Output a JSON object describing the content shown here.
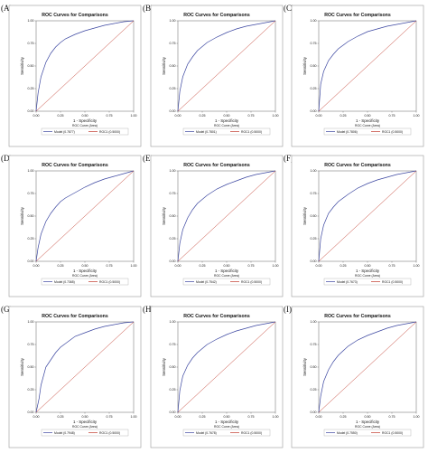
{
  "chart_data": [
    {
      "panel": "(A)",
      "type": "line",
      "title": "ROC Curves for Comparisons",
      "xlabel": "1 - Specificity",
      "ylabel": "Sensitivity",
      "xlim": [
        0,
        1
      ],
      "ylim": [
        0,
        1
      ],
      "xticks": [
        "0.00",
        "0.25",
        "0.50",
        "0.75",
        "1.00"
      ],
      "yticks": [
        "0.00",
        "0.25",
        "0.50",
        "0.75",
        "1.00"
      ],
      "legend_title": "ROC Curve (Area)",
      "legend_position": "bottom",
      "series": [
        {
          "name": "Model",
          "area_label": "(0.7877)",
          "color": "#3b46a0",
          "x": [
            0,
            0.02,
            0.05,
            0.1,
            0.15,
            0.2,
            0.25,
            0.3,
            0.4,
            0.5,
            0.6,
            0.7,
            0.8,
            0.9,
            1
          ],
          "y": [
            0,
            0.2,
            0.38,
            0.54,
            0.64,
            0.71,
            0.76,
            0.8,
            0.85,
            0.89,
            0.92,
            0.95,
            0.97,
            0.99,
            1
          ]
        },
        {
          "name": "ROC1",
          "area_label": "(0.5000)",
          "color": "#c0392b",
          "x": [
            0,
            1
          ],
          "y": [
            0,
            1
          ]
        }
      ]
    },
    {
      "panel": "(B)",
      "type": "line",
      "title": "ROC Curves for Comparisons",
      "xlabel": "1 - Specificity",
      "ylabel": "Sensitivity",
      "xlim": [
        0,
        1
      ],
      "ylim": [
        0,
        1
      ],
      "xticks": [
        "0.00",
        "0.25",
        "0.50",
        "0.75",
        "1.00"
      ],
      "yticks": [
        "0.00",
        "0.25",
        "0.50",
        "0.75",
        "1.00"
      ],
      "legend_title": "ROC Curve (Area)",
      "legend_position": "bottom",
      "series": [
        {
          "name": "Model",
          "area_label": "(0.7801)",
          "color": "#3b46a0",
          "x": [
            0,
            0.02,
            0.05,
            0.1,
            0.15,
            0.2,
            0.3,
            0.4,
            0.5,
            0.6,
            0.7,
            0.8,
            0.9,
            1
          ],
          "y": [
            0,
            0.22,
            0.38,
            0.52,
            0.6,
            0.67,
            0.76,
            0.82,
            0.87,
            0.91,
            0.94,
            0.96,
            0.98,
            1
          ]
        },
        {
          "name": "ROC1",
          "area_label": "(0.5000)",
          "color": "#c0392b",
          "x": [
            0,
            1
          ],
          "y": [
            0,
            1
          ]
        }
      ]
    },
    {
      "panel": "(C)",
      "type": "line",
      "title": "ROC Curves for Comparisons",
      "xlabel": "1 - Specificity",
      "ylabel": "Sensitivity",
      "xlim": [
        0,
        1
      ],
      "ylim": [
        0,
        1
      ],
      "xticks": [
        "0.00",
        "0.25",
        "0.50",
        "0.75",
        "1.00"
      ],
      "yticks": [
        "0.00",
        "0.25",
        "0.50",
        "0.75",
        "1.00"
      ],
      "legend_title": "ROC Curve (Area)",
      "legend_position": "bottom",
      "series": [
        {
          "name": "Model",
          "area_label": "(0.7806)",
          "color": "#3b46a0",
          "x": [
            0,
            0.02,
            0.05,
            0.1,
            0.15,
            0.2,
            0.3,
            0.4,
            0.5,
            0.6,
            0.7,
            0.8,
            0.9,
            1
          ],
          "y": [
            0,
            0.3,
            0.44,
            0.56,
            0.63,
            0.69,
            0.77,
            0.83,
            0.88,
            0.91,
            0.94,
            0.96,
            0.98,
            1
          ]
        },
        {
          "name": "ROC1",
          "area_label": "(0.5000)",
          "color": "#c0392b",
          "x": [
            0,
            1
          ],
          "y": [
            0,
            1
          ]
        }
      ]
    },
    {
      "panel": "(D)",
      "type": "line",
      "title": "ROC Curves for Comparisons",
      "xlabel": "1 - Specificity",
      "ylabel": "Sensitivity",
      "xlim": [
        0,
        1
      ],
      "ylim": [
        0,
        1
      ],
      "xticks": [
        "0.00",
        "0.25",
        "0.50",
        "0.75",
        "1.00"
      ],
      "yticks": [
        "0.00",
        "0.25",
        "0.50",
        "0.75",
        "1.00"
      ],
      "legend_title": "ROC Curve (Area)",
      "legend_position": "bottom",
      "series": [
        {
          "name": "Model",
          "area_label": "(0.7365)",
          "color": "#3b46a0",
          "x": [
            0,
            0.02,
            0.05,
            0.1,
            0.15,
            0.2,
            0.25,
            0.3,
            0.4,
            0.5,
            0.6,
            0.7,
            0.8,
            0.9,
            1
          ],
          "y": [
            0,
            0.15,
            0.3,
            0.44,
            0.53,
            0.6,
            0.66,
            0.7,
            0.76,
            0.82,
            0.87,
            0.91,
            0.94,
            0.97,
            1
          ]
        },
        {
          "name": "ROC1",
          "area_label": "(0.5000)",
          "color": "#c0392b",
          "x": [
            0,
            1
          ],
          "y": [
            0,
            1
          ]
        }
      ]
    },
    {
      "panel": "(E)",
      "type": "line",
      "title": "ROC Curves for Comparisons",
      "xlabel": "1 - Specificity",
      "ylabel": "Sensitivity",
      "xlim": [
        0,
        1
      ],
      "ylim": [
        0,
        1
      ],
      "xticks": [
        "0.00",
        "0.25",
        "0.50",
        "0.75",
        "1.00"
      ],
      "yticks": [
        "0.00",
        "0.25",
        "0.50",
        "0.75",
        "1.00"
      ],
      "legend_title": "ROC Curve (Area)",
      "legend_position": "bottom",
      "series": [
        {
          "name": "Model",
          "area_label": "(0.7542)",
          "color": "#3b46a0",
          "x": [
            0,
            0.02,
            0.05,
            0.1,
            0.15,
            0.2,
            0.3,
            0.4,
            0.5,
            0.6,
            0.7,
            0.8,
            0.9,
            1
          ],
          "y": [
            0,
            0.2,
            0.35,
            0.48,
            0.57,
            0.64,
            0.73,
            0.8,
            0.85,
            0.89,
            0.93,
            0.96,
            0.98,
            1
          ]
        },
        {
          "name": "ROC1",
          "area_label": "(0.5000)",
          "color": "#c0392b",
          "x": [
            0,
            1
          ],
          "y": [
            0,
            1
          ]
        }
      ]
    },
    {
      "panel": "(F)",
      "type": "line",
      "title": "ROC Curves for Comparisons",
      "xlabel": "1 - Specificity",
      "ylabel": "Sensitivity",
      "xlim": [
        0,
        1
      ],
      "ylim": [
        0,
        1
      ],
      "xticks": [
        "0.00",
        "0.25",
        "0.50",
        "0.75",
        "1.00"
      ],
      "yticks": [
        "0.00",
        "0.25",
        "0.50",
        "0.75",
        "1.00"
      ],
      "legend_title": "ROC Curve (Area)",
      "legend_position": "bottom",
      "series": [
        {
          "name": "Model",
          "area_label": "(0.7673)",
          "color": "#3b46a0",
          "x": [
            0,
            0.02,
            0.05,
            0.1,
            0.15,
            0.2,
            0.3,
            0.4,
            0.5,
            0.6,
            0.7,
            0.8,
            0.9,
            1
          ],
          "y": [
            0,
            0.25,
            0.4,
            0.53,
            0.6,
            0.66,
            0.74,
            0.81,
            0.86,
            0.9,
            0.93,
            0.96,
            0.98,
            1
          ]
        },
        {
          "name": "ROC1",
          "area_label": "(0.5000)",
          "color": "#c0392b",
          "x": [
            0,
            1
          ],
          "y": [
            0,
            1
          ]
        }
      ]
    },
    {
      "panel": "(G)",
      "type": "line",
      "title": "ROC Curves for Comparisons",
      "xlabel": "1 - Specificity",
      "ylabel": "Sensitivity",
      "xlim": [
        0,
        1
      ],
      "ylim": [
        0,
        1
      ],
      "xticks": [
        "0.00",
        "0.25",
        "0.50",
        "0.75",
        "1.00"
      ],
      "yticks": [
        "0.00",
        "0.25",
        "0.50",
        "0.75",
        "1.00"
      ],
      "legend_title": "ROC Curve (Area)",
      "legend_position": "bottom",
      "series": [
        {
          "name": "Model",
          "area_label": "(0.7948)",
          "color": "#3b46a0",
          "x": [
            0,
            0.03,
            0.05,
            0.08,
            0.1,
            0.15,
            0.2,
            0.25,
            0.3,
            0.35,
            0.4,
            0.5,
            0.6,
            0.7,
            0.8,
            0.9,
            1
          ],
          "y": [
            0,
            0.15,
            0.3,
            0.42,
            0.5,
            0.58,
            0.66,
            0.72,
            0.76,
            0.8,
            0.84,
            0.88,
            0.92,
            0.95,
            0.97,
            0.99,
            1
          ]
        },
        {
          "name": "ROC1",
          "area_label": "(0.5000)",
          "color": "#c0392b",
          "x": [
            0,
            1
          ],
          "y": [
            0,
            1
          ]
        }
      ]
    },
    {
      "panel": "(H)",
      "type": "line",
      "title": "ROC Curves for Comparisons",
      "xlabel": "1 - Specificity",
      "ylabel": "Sensitivity",
      "xlim": [
        0,
        1
      ],
      "ylim": [
        0,
        1
      ],
      "xticks": [
        "0.00",
        "0.25",
        "0.50",
        "0.75",
        "1.00"
      ],
      "yticks": [
        "0.00",
        "0.25",
        "0.50",
        "0.75",
        "1.00"
      ],
      "legend_title": "ROC Curve (Area)",
      "legend_position": "bottom",
      "series": [
        {
          "name": "Model",
          "area_label": "(0.7678)",
          "color": "#3b46a0",
          "x": [
            0,
            0.02,
            0.05,
            0.1,
            0.15,
            0.2,
            0.3,
            0.4,
            0.5,
            0.6,
            0.7,
            0.8,
            0.9,
            1
          ],
          "y": [
            0,
            0.24,
            0.4,
            0.52,
            0.6,
            0.66,
            0.75,
            0.81,
            0.86,
            0.9,
            0.93,
            0.96,
            0.98,
            1
          ]
        },
        {
          "name": "ROC1",
          "area_label": "(0.5000)",
          "color": "#c0392b",
          "x": [
            0,
            1
          ],
          "y": [
            0,
            1
          ]
        }
      ]
    },
    {
      "panel": "(I)",
      "type": "line",
      "title": "ROC Curves for Comparisons",
      "xlabel": "1 - Specificity",
      "ylabel": "Sensitivity",
      "xlim": [
        0,
        1
      ],
      "ylim": [
        0,
        1
      ],
      "xticks": [
        "0.00",
        "0.25",
        "0.50",
        "0.75",
        "1.00"
      ],
      "yticks": [
        "0.00",
        "0.25",
        "0.50",
        "0.75",
        "1.00"
      ],
      "legend_title": "ROC Curve (Area)",
      "legend_position": "bottom",
      "series": [
        {
          "name": "Model",
          "area_label": "(0.7550)",
          "color": "#3b46a0",
          "x": [
            0,
            0.02,
            0.05,
            0.1,
            0.15,
            0.2,
            0.3,
            0.4,
            0.5,
            0.6,
            0.7,
            0.8,
            0.9,
            1
          ],
          "y": [
            0,
            0.18,
            0.34,
            0.47,
            0.56,
            0.63,
            0.73,
            0.8,
            0.85,
            0.89,
            0.93,
            0.96,
            0.98,
            1
          ]
        },
        {
          "name": "ROC1",
          "area_label": "(0.5000)",
          "color": "#c0392b",
          "x": [
            0,
            1
          ],
          "y": [
            0,
            1
          ]
        }
      ]
    }
  ]
}
